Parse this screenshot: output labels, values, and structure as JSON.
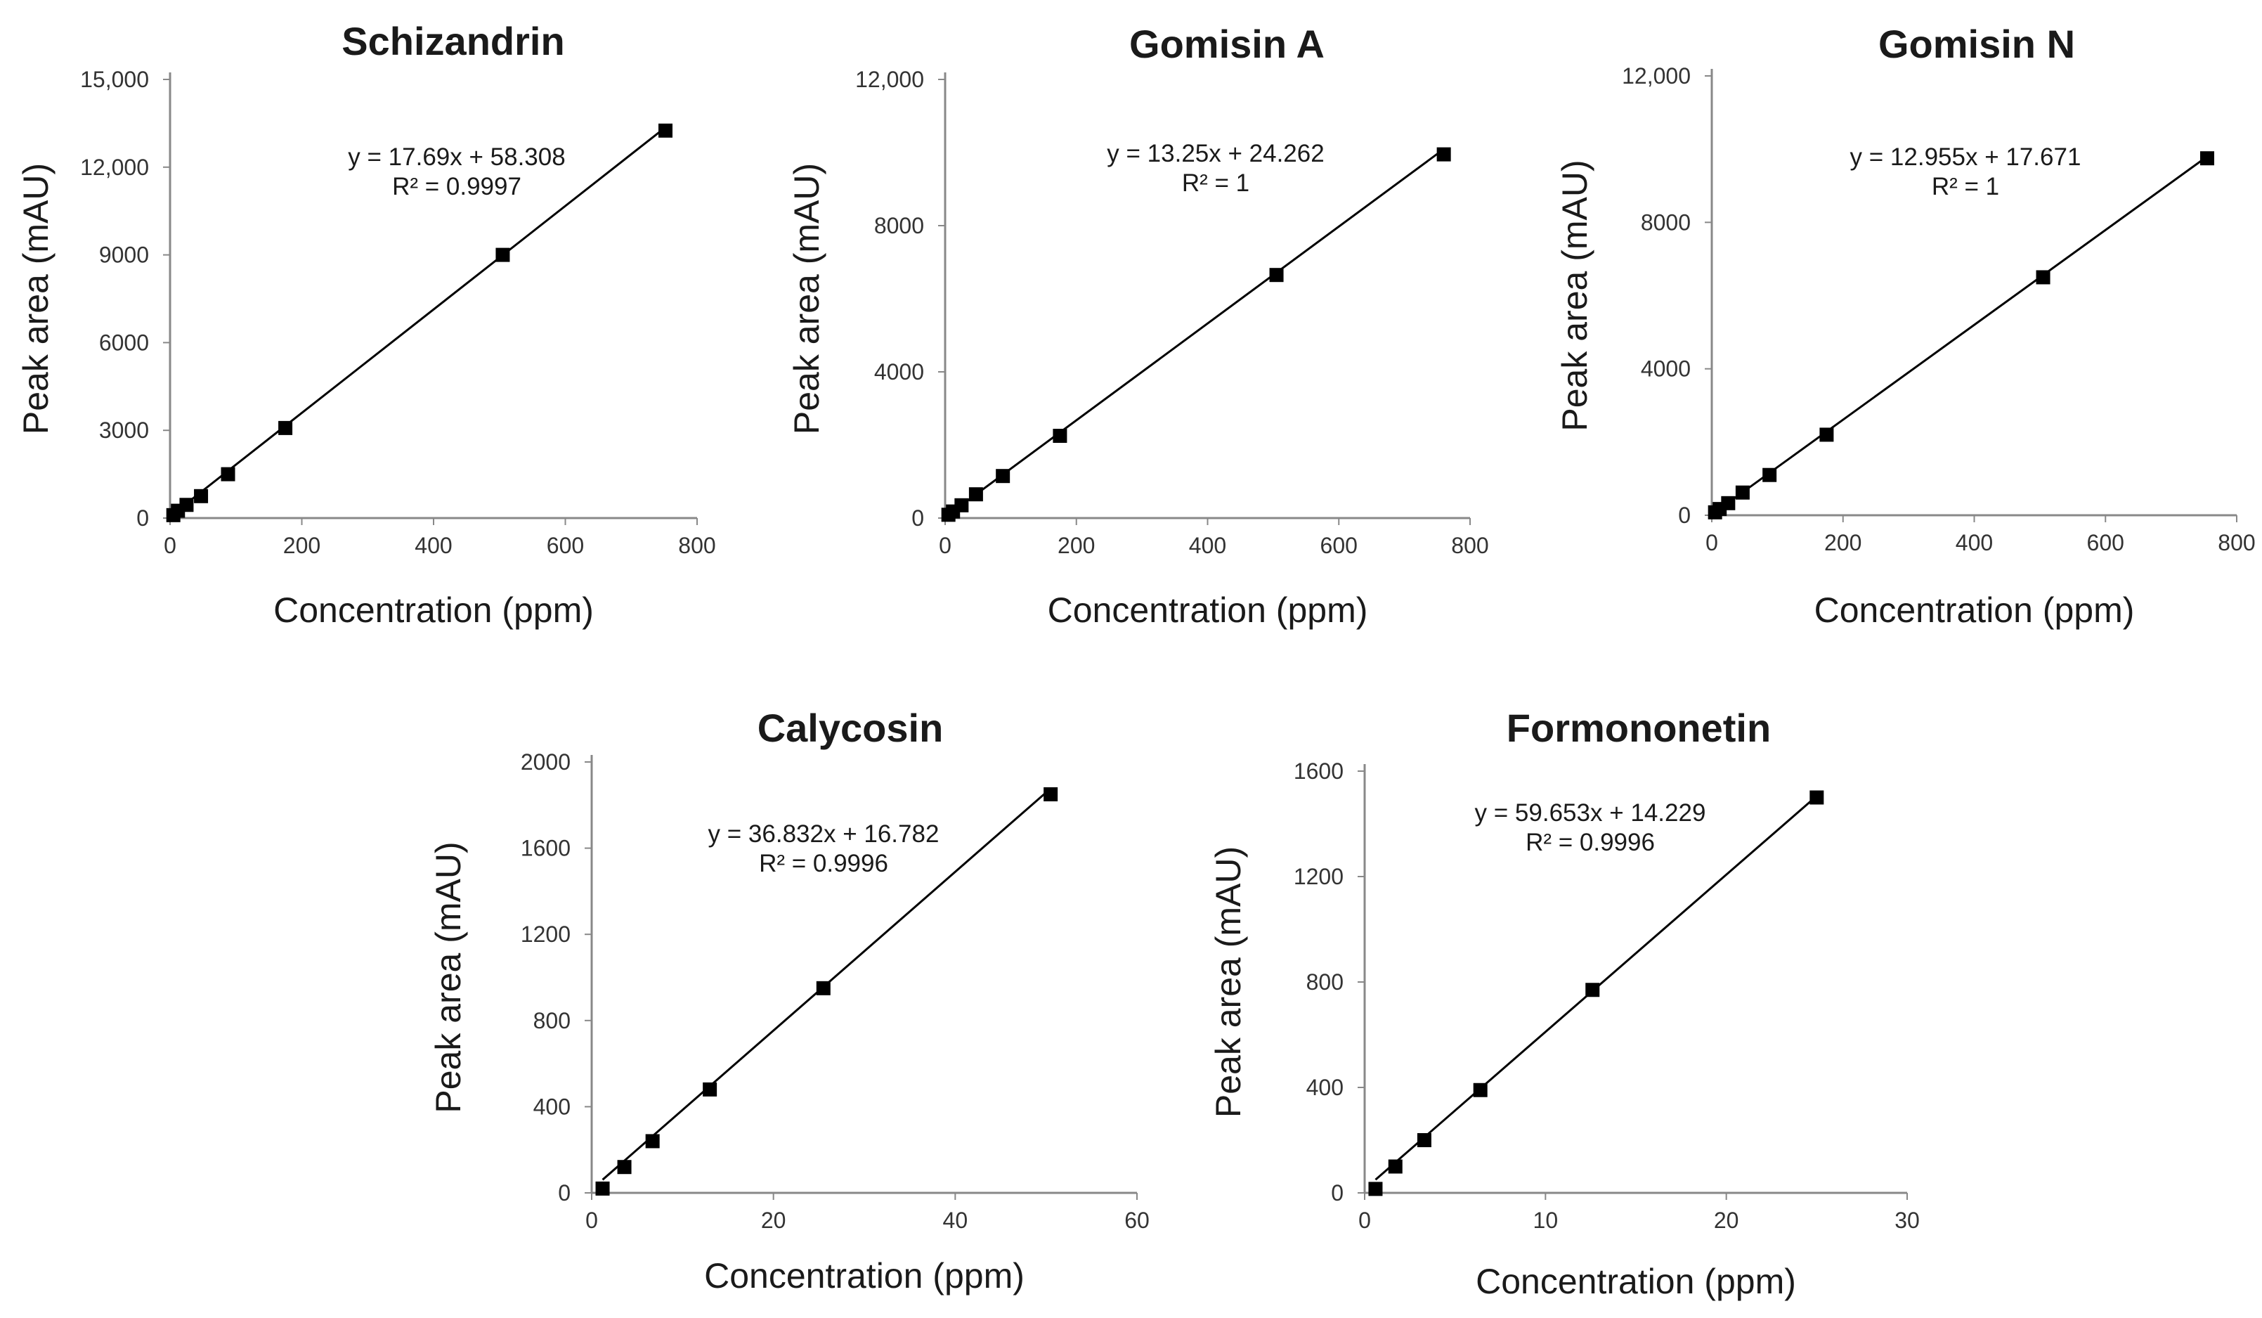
{
  "chart_data": [
    {
      "type": "scatter",
      "title": "Schizandrin",
      "xlabel": "Concentration (ppm)",
      "ylabel": "Peak area (mAU)",
      "xlim": [
        0,
        800
      ],
      "ylim": [
        0,
        15000
      ],
      "xticks": [
        0,
        200,
        400,
        600,
        800
      ],
      "yticks": [
        0,
        3000,
        6000,
        9000,
        12000,
        15000
      ],
      "xtick_labels": [
        "0",
        "200",
        "400",
        "600",
        "800"
      ],
      "ytick_labels": [
        "0",
        "3000",
        "6000",
        "9000",
        "12,000",
        "15,000"
      ],
      "x": [
        5,
        12,
        25,
        47,
        88,
        175,
        505,
        752
      ],
      "y": [
        100,
        250,
        450,
        750,
        1500,
        3080,
        9000,
        13250
      ],
      "trendline": {
        "slope": 17.69,
        "intercept": 58.308
      },
      "equation": "y = 17.69x + 58.308",
      "r2": "R² = 0.9997"
    },
    {
      "type": "scatter",
      "title": "Gomisin A",
      "xlabel": "Concentration (ppm)",
      "ylabel": "Peak area (mAU)",
      "xlim": [
        0,
        800
      ],
      "ylim": [
        0,
        12000
      ],
      "xticks": [
        0,
        200,
        400,
        600,
        800
      ],
      "yticks": [
        0,
        4000,
        8000,
        12000
      ],
      "xtick_labels": [
        "0",
        "200",
        "400",
        "600",
        "800"
      ],
      "ytick_labels": [
        "0",
        "4000",
        "8000",
        "12,000"
      ],
      "x": [
        5,
        12,
        25,
        47,
        88,
        175,
        505,
        760
      ],
      "y": [
        90,
        180,
        350,
        650,
        1150,
        2250,
        6650,
        9950
      ],
      "trendline": {
        "slope": 13.25,
        "intercept": 24.262
      },
      "equation": "y = 13.25x + 24.262",
      "r2": "R² = 1"
    },
    {
      "type": "scatter",
      "title": "Gomisin N",
      "xlabel": "Concentration (ppm)",
      "ylabel": "Peak area (mAU)",
      "xlim": [
        0,
        800
      ],
      "ylim": [
        0,
        12000
      ],
      "xticks": [
        0,
        200,
        400,
        600,
        800
      ],
      "yticks": [
        0,
        4000,
        8000,
        12000
      ],
      "xtick_labels": [
        "0",
        "200",
        "400",
        "600",
        "800"
      ],
      "ytick_labels": [
        "0",
        "4000",
        "8000",
        "12,000"
      ],
      "x": [
        5,
        12,
        25,
        47,
        88,
        175,
        505,
        755
      ],
      "y": [
        80,
        170,
        330,
        620,
        1100,
        2200,
        6500,
        9750
      ],
      "trendline": {
        "slope": 12.955,
        "intercept": 17.671
      },
      "equation": "y = 12.955x + 17.671",
      "r2": "R² = 1"
    },
    {
      "type": "scatter",
      "title": "Calycosin",
      "xlabel": "Concentration (ppm)",
      "ylabel": "Peak area (mAU)",
      "xlim": [
        0,
        60
      ],
      "ylim": [
        0,
        2000
      ],
      "xticks": [
        0,
        20,
        40,
        60
      ],
      "yticks": [
        0,
        400,
        800,
        1200,
        1600,
        2000
      ],
      "xtick_labels": [
        "0",
        "20",
        "40",
        "60"
      ],
      "ytick_labels": [
        "0",
        "400",
        "800",
        "1200",
        "1600",
        "2000"
      ],
      "x": [
        1.2,
        3.6,
        6.7,
        13,
        25.5,
        50.5
      ],
      "y": [
        20,
        120,
        240,
        480,
        950,
        1850
      ],
      "trendline": {
        "slope": 36.832,
        "intercept": 16.782
      },
      "equation": "y = 36.832x + 16.782",
      "r2": "R² = 0.9996"
    },
    {
      "type": "scatter",
      "title": "Formononetin",
      "xlabel": "Concentration (ppm)",
      "ylabel": "Peak area (mAU)",
      "xlim": [
        0,
        30
      ],
      "ylim": [
        0,
        1600
      ],
      "xticks": [
        0,
        10,
        20,
        30
      ],
      "yticks": [
        0,
        400,
        800,
        1200,
        1600
      ],
      "xtick_labels": [
        "0",
        "10",
        "20",
        "30"
      ],
      "ytick_labels": [
        "0",
        "400",
        "800",
        "1200",
        "1600"
      ],
      "x": [
        0.6,
        1.7,
        3.3,
        6.4,
        12.6,
        25
      ],
      "y": [
        15,
        100,
        200,
        390,
        770,
        1500
      ],
      "trendline": {
        "slope": 59.653,
        "intercept": 14.229
      },
      "equation": "y = 59.653x + 14.229",
      "r2": "R² = 0.9996"
    }
  ]
}
